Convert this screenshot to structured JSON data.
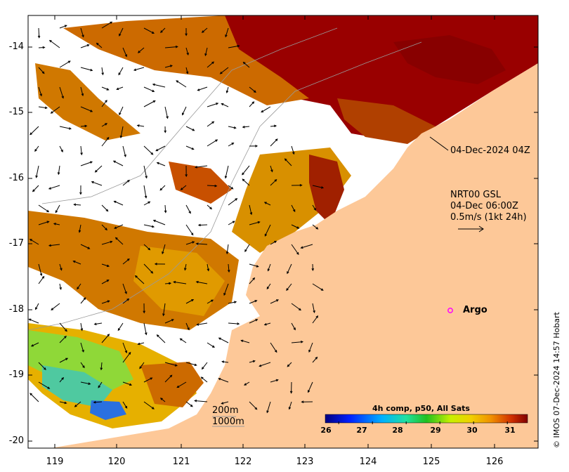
{
  "map": {
    "y_ticks": [
      "-14",
      "-15",
      "-16",
      "-17",
      "-18",
      "-19",
      "-20"
    ],
    "x_ticks": [
      "119",
      "120",
      "121",
      "122",
      "123",
      "124",
      "125",
      "126"
    ],
    "timestamp_label": "04-Dec-2024 04Z",
    "current_source": "NRT00 GSL",
    "current_time": "04-Dec 06:00Z",
    "current_scale": "0.5m/s (1kt 24h)",
    "argo_label": "Argo",
    "isobath_200": "200m",
    "isobath_1000": "1000m",
    "colorbar_title": "4h comp, p50, All Sats",
    "colorbar_ticks": [
      "26",
      "27",
      "28",
      "29",
      "30",
      "31"
    ],
    "colorbar_range": [
      25.6,
      31.6
    ],
    "credit": "© IMOS 07-Dec-2024 14:57 Hobart",
    "colors": {
      "land": "#fdc898",
      "sst_hot": "#990000",
      "sst_warm": "#cc6600",
      "sst_mid": "#e3a800",
      "sst_cool": "#7fd43a",
      "argo": "#ff00ff"
    }
  }
}
